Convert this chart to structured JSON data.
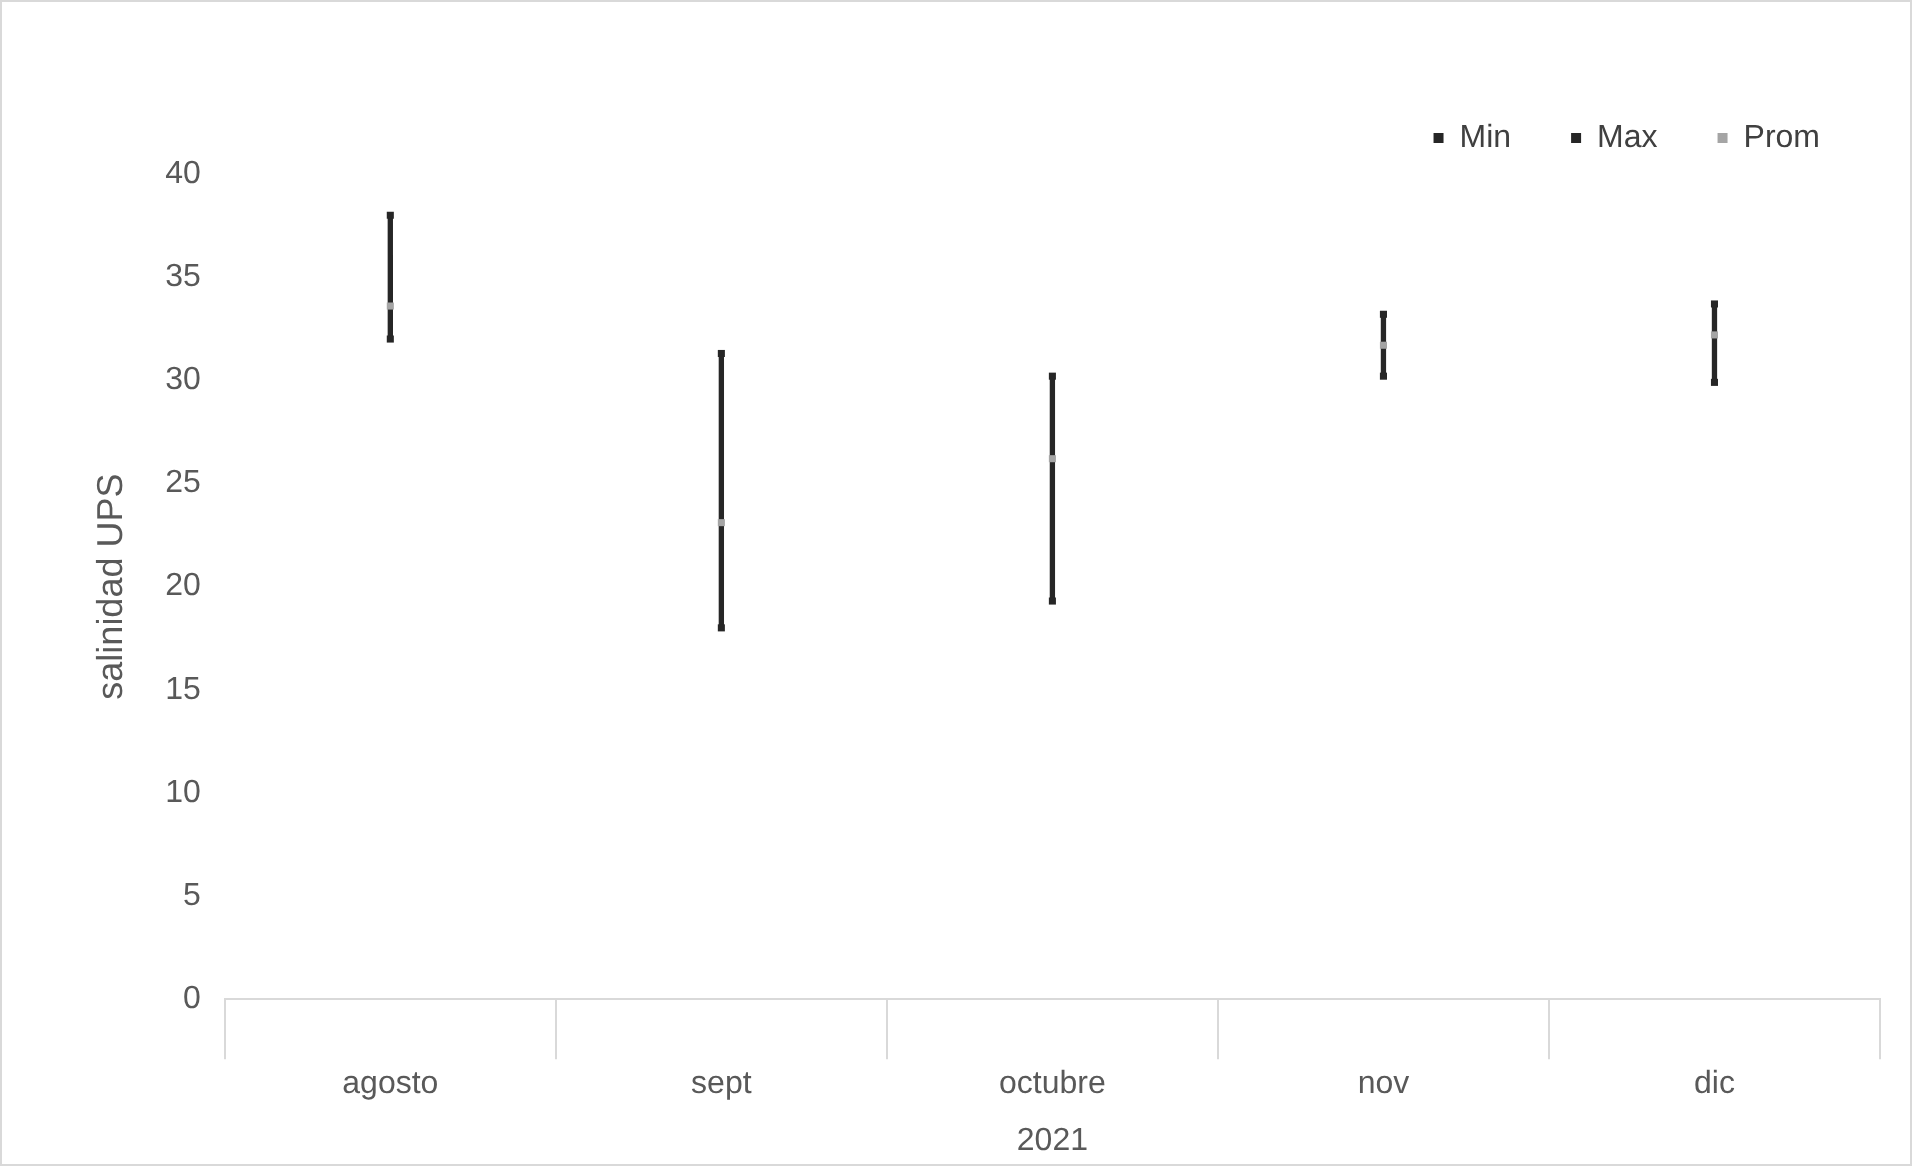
{
  "chart_data": {
    "type": "scatter",
    "xlabel": "2021",
    "ylabel": "salinidad UPS",
    "categories": [
      "agosto",
      "sept",
      "octubre",
      "nov",
      "dic"
    ],
    "series": [
      {
        "type": "bar",
        "color": "#262626",
        "base": [
          32,
          18,
          19.3,
          30.2,
          29.9
        ],
        "values": [
          6,
          13.3,
          10.9,
          3,
          3.8
        ]
      },
      {
        "name": "Min",
        "color": "#262626",
        "marker": "square",
        "values": [
          32,
          18,
          19.3,
          30.2,
          29.9
        ]
      },
      {
        "name": "Max",
        "color": "#262626",
        "marker": "square",
        "values": [
          38,
          31.3,
          30.2,
          33.2,
          33.7
        ]
      },
      {
        "name": "Prom",
        "color": "#a5a5a5",
        "marker": "square",
        "values": [
          33.6,
          23.1,
          26.2,
          31.7,
          32.2
        ]
      }
    ],
    "ylim": [
      0,
      40
    ],
    "yticks": [
      0,
      5,
      10,
      15,
      20,
      25,
      30,
      35,
      40
    ],
    "grid": false,
    "legend": "top right"
  }
}
